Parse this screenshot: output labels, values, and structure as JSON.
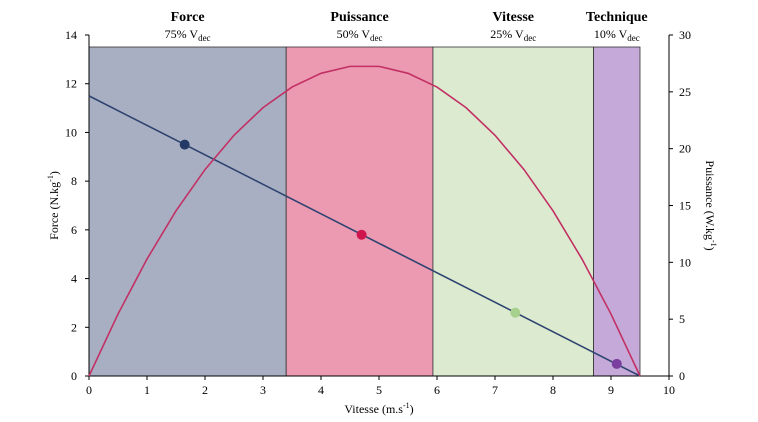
{
  "chart_data": {
    "type": "line",
    "x_label": [
      "Vitesse (m.s",
      "-1",
      ")"
    ],
    "y_label": [
      "Force (N.kg",
      "-1",
      ")"
    ],
    "y2_label": [
      "Puissance (W.kg",
      "-1",
      ")"
    ],
    "xlim": [
      0,
      10
    ],
    "xticks": [
      0,
      1,
      2,
      3,
      4,
      5,
      6,
      7,
      8,
      9,
      10
    ],
    "ylim": [
      0,
      14
    ],
    "yticks": [
      0,
      2,
      4,
      6,
      8,
      10,
      12,
      14
    ],
    "y2lim": [
      0,
      30
    ],
    "y2ticks": [
      0,
      5,
      10,
      15,
      20,
      25,
      30
    ],
    "zones": [
      {
        "title": "Force",
        "label": "75% V",
        "sub": "dec",
        "from": 0,
        "to": 3.4,
        "color": "#a9afc2"
      },
      {
        "title": "Puissance",
        "label": "50% V",
        "sub": "dec",
        "from": 3.4,
        "to": 5.93,
        "color": "#ec99b2"
      },
      {
        "title": "Vitesse",
        "label": "25% V",
        "sub": "dec",
        "from": 5.93,
        "to": 8.7,
        "color": "#dcebd0"
      },
      {
        "title": "Technique",
        "label": "10% V",
        "sub": "dec",
        "from": 8.7,
        "to": 9.5,
        "color": "#c5a9d8"
      }
    ],
    "series": [
      {
        "color": "#2e4470",
        "x": [
          0,
          9.5
        ],
        "values": [
          11.5,
          0
        ]
      },
      {
        "color": "#c23064",
        "axis": "y2",
        "x": [
          0,
          0.5,
          1,
          1.5,
          2,
          2.5,
          3,
          3.5,
          4,
          4.5,
          5,
          5.5,
          6,
          6.5,
          7,
          7.5,
          8,
          8.5,
          9,
          9.5
        ],
        "values": [
          0,
          5.45,
          10.29,
          14.53,
          18.16,
          21.18,
          23.61,
          25.42,
          26.63,
          27.24,
          27.24,
          26.63,
          25.42,
          23.61,
          21.18,
          18.16,
          14.53,
          10.29,
          5.45,
          0
        ]
      }
    ],
    "markers": {
      "x": [
        1.65,
        4.7,
        7.35,
        9.1
      ],
      "values": [
        9.5,
        5.8,
        2.6,
        0.5
      ],
      "colors": [
        "#233a66",
        "#d0144e",
        "#a8d08d",
        "#7b3fa0"
      ]
    }
  }
}
